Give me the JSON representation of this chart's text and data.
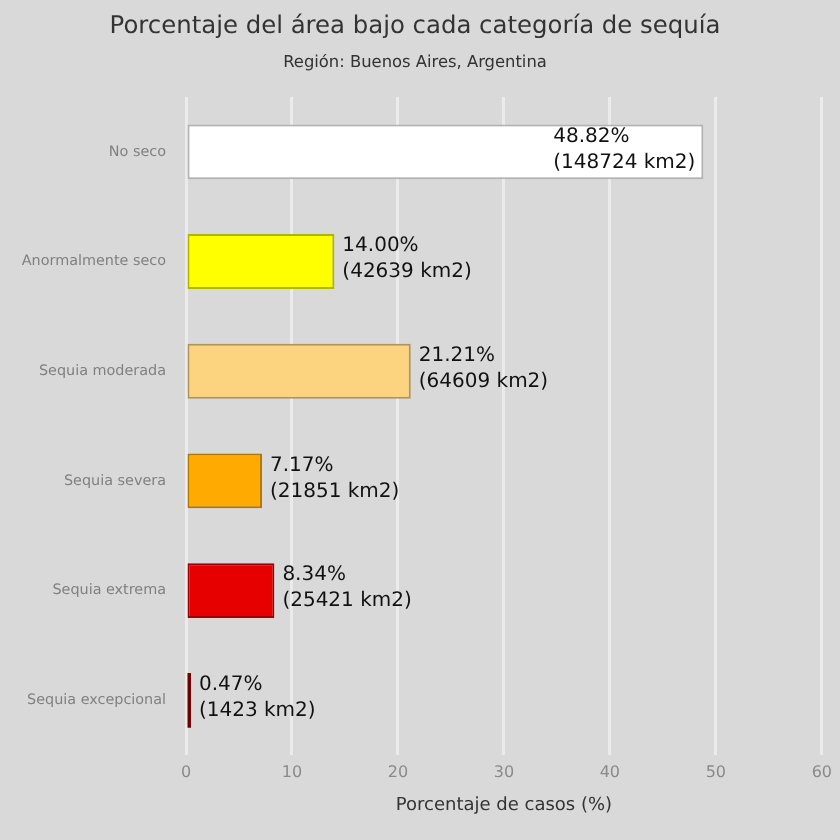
{
  "chart_data": {
    "type": "bar",
    "orientation": "horizontal",
    "title": "Porcentaje del área bajo cada categoría de sequía",
    "subtitle": "Región: Buenos Aires, Argentina",
    "xlabel": "Porcentaje de casos (%)",
    "categories": [
      "No seco",
      "Anormalmente seco",
      "Sequia moderada",
      "Sequia severa",
      "Sequia extrema",
      "Sequia excepcional"
    ],
    "values": [
      48.82,
      14.0,
      21.21,
      7.17,
      8.34,
      0.47
    ],
    "colors": [
      "#ffffff",
      "#ffff00",
      "#fcd37f",
      "#ffaa00",
      "#e60000",
      "#730000"
    ],
    "value_labels": [
      "48.82%\n(148724 km2)",
      "14.00%\n(42639 km2)",
      "21.21%\n(64609 km2)",
      "7.17%\n(21851 km2)",
      "8.34%\n(25421 km2)",
      "0.47%\n(1423 km2)"
    ],
    "xlim": [
      0,
      60
    ],
    "xticks": [
      0,
      10,
      20,
      30,
      40,
      50,
      60
    ],
    "grid": "x"
  }
}
